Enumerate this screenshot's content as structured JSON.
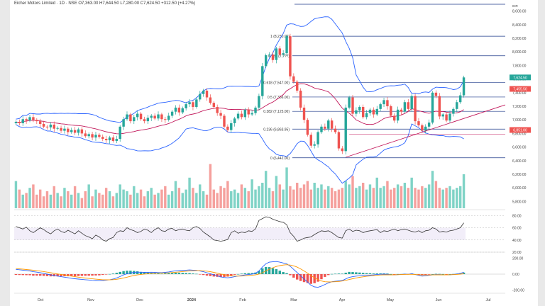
{
  "header": {
    "ticker": "Eicher Motors Limited · 1D · NSE   O7,363.00  H7,644.50  L7,280.00  C7,624.50  +312.50 (+4.27%)",
    "corner": "INR"
  },
  "colors": {
    "up": "#26a69a",
    "down": "#ef5350",
    "bb": "#2962ff",
    "basis": "#c2185b",
    "fib": "#1e3a8a",
    "rsi": "#333333",
    "macd": "#2962ff",
    "signal": "#ff9800",
    "trend": "#c2185b"
  },
  "chart_data": {
    "type": "candlestick",
    "months": [
      "Oct",
      "Nov",
      "Dec",
      "2024",
      "Feb",
      "Mar",
      "Apr",
      "May",
      "Jun",
      "Jul"
    ],
    "price_axis": [
      "8,600.00",
      "8,400.00",
      "8,200.00",
      "8,000.00",
      "7,800.00",
      "7,600.00",
      "7,400.00",
      "7,200.00",
      "7,000.00",
      "6,800.00",
      "6,600.00",
      "6,400.00",
      "6,200.00",
      "6,000.00",
      "5,800.00"
    ],
    "price_range": [
      5700,
      8700
    ],
    "fib_levels": [
      {
        "label": "1 (8,230.00)",
        "value": 8230
      },
      {
        "label": "0.786 (7,???)",
        "value": 7942
      },
      {
        "label": "0.618 (7,547.00)",
        "value": 7547
      },
      {
        "label": "0.5 (7,336.00)",
        "value": 7336
      },
      {
        "label": "0.382 (7,125.00)",
        "value": 7125
      },
      {
        "label": "0.236 (6,863.95)",
        "value": 6864
      },
      {
        "label": "0 (6,442.00)",
        "value": 6442
      }
    ],
    "price_badges": [
      {
        "label": "7,624.50",
        "value": 7624,
        "color": "#26a69a"
      },
      {
        "label": "7,455.50",
        "value": 7455,
        "color": "#ef5350"
      },
      {
        "label": "6,851.00",
        "value": 6851,
        "color": "#ef5350"
      }
    ],
    "candles_close": [
      6970,
      6950,
      7010,
      6990,
      7040,
      7000,
      6980,
      6940,
      6900,
      6890,
      6930,
      6870,
      6880,
      6840,
      6870,
      6820,
      6850,
      6810,
      6860,
      6800,
      6760,
      6790,
      6740,
      6780,
      6750,
      6720,
      6700,
      6740,
      6690,
      6720,
      6900,
      7010,
      7080,
      6980,
      7040,
      7090,
      7010,
      6980,
      7030,
      7060,
      7020,
      7080,
      7010,
      7000,
      7060,
      7120,
      7180,
      7110,
      7170,
      7230,
      7260,
      7190,
      7300,
      7380,
      7430,
      7330,
      7250,
      7190,
      7100,
      7060,
      6900,
      6850,
      6950,
      7020,
      7090,
      7040,
      7150,
      7080,
      7100,
      7180,
      7350,
      7790,
      7950,
      7960,
      7880,
      8050,
      7960,
      7980,
      8230,
      7640,
      7560,
      7430,
      7180,
      7000,
      6780,
      6620,
      6640,
      6820,
      6900,
      6870,
      6990,
      6870,
      6820,
      6580,
      6540,
      7180,
      7330,
      7090,
      7140,
      7190,
      7040,
      7100,
      7150,
      7080,
      7160,
      7230,
      7290,
      7200,
      7060,
      6990,
      7150,
      7120,
      7260,
      7160,
      7350,
      6980,
      6920,
      6840,
      6900,
      6960,
      7400,
      7350,
      7050,
      7080,
      6990,
      7090,
      7160,
      7260,
      7360,
      7624
    ],
    "volume": [
      16,
      11,
      8,
      9,
      12,
      14,
      8,
      11,
      7,
      10,
      8,
      13,
      9,
      7,
      12,
      10,
      8,
      13,
      9,
      6,
      10,
      14,
      7,
      11,
      9,
      8,
      12,
      10,
      7,
      9,
      14,
      11,
      10,
      8,
      13,
      9,
      11,
      7,
      10,
      12,
      8,
      9,
      11,
      13,
      8,
      10,
      16,
      12,
      9,
      11,
      18,
      12,
      9,
      14,
      10,
      8,
      26,
      11,
      9,
      13,
      12,
      16,
      10,
      11,
      9,
      14,
      12,
      10,
      17,
      11,
      13,
      15,
      22,
      12,
      10,
      19,
      14,
      11,
      24,
      13,
      11,
      15,
      12,
      14,
      16,
      11,
      15,
      12,
      14,
      11,
      13,
      12,
      10,
      11,
      12,
      16,
      14,
      19,
      12,
      13,
      15,
      11,
      14,
      12,
      18,
      12,
      13,
      16,
      11,
      12,
      14,
      13,
      15,
      12,
      18,
      12,
      11,
      13,
      12,
      14,
      22,
      16,
      12,
      11,
      12,
      13,
      11,
      12,
      13,
      20
    ],
    "rsi_axis": [
      "80.00",
      "60.00",
      "40.00",
      "20.00"
    ],
    "rsi_range": [
      20,
      85
    ],
    "rsi": [
      62,
      60,
      58,
      61,
      55,
      52,
      56,
      60,
      57,
      53,
      50,
      55,
      58,
      54,
      52,
      56,
      53,
      50,
      55,
      51,
      47,
      45,
      42,
      48,
      45,
      40,
      38,
      42,
      44,
      52,
      55,
      54,
      60,
      57,
      55,
      52,
      54,
      58,
      56,
      52,
      57,
      60,
      55,
      54,
      58,
      59,
      55,
      57,
      58,
      56,
      55,
      60,
      62,
      59,
      53,
      49,
      45,
      40,
      39,
      38,
      39,
      41,
      52,
      55,
      51,
      53,
      52,
      55,
      54,
      58,
      72,
      75,
      78,
      77,
      74,
      72,
      70,
      69,
      65,
      52,
      46,
      38,
      40,
      43,
      44,
      45,
      49,
      52,
      55,
      54,
      55,
      52,
      48,
      44,
      43,
      55,
      58,
      54,
      56,
      55,
      52,
      54,
      55,
      56,
      57,
      52,
      55,
      54,
      56,
      58,
      55,
      57,
      58,
      56,
      54,
      53,
      55,
      52,
      55,
      56,
      60,
      58,
      53,
      54,
      53,
      55,
      56,
      58,
      60,
      68
    ],
    "macd_axis": [
      "200.00",
      "0.00",
      "-200.00"
    ],
    "macd_range": [
      -240,
      240
    ],
    "macd": [
      60,
      55,
      50,
      45,
      40,
      30,
      25,
      18,
      10,
      0,
      -10,
      -18,
      -25,
      -32,
      -38,
      -45,
      -52,
      -58,
      -62,
      -66,
      -70,
      -74,
      -78,
      -80,
      -82,
      -80,
      -76,
      -70,
      -62,
      -48,
      -30,
      -10,
      5,
      15,
      22,
      25,
      24,
      22,
      23,
      24,
      22,
      20,
      18,
      22,
      28,
      35,
      42,
      45,
      48,
      50,
      52,
      50,
      48,
      40,
      30,
      18,
      5,
      -8,
      -22,
      -35,
      -42,
      -46,
      -40,
      -32,
      -24,
      -18,
      -10,
      -5,
      0,
      10,
      40,
      90,
      130,
      150,
      155,
      158,
      150,
      140,
      130,
      100,
      60,
      20,
      -20,
      -60,
      -100,
      -140,
      -160,
      -165,
      -150,
      -130,
      -110,
      -95,
      -90,
      -85,
      -80,
      -60,
      -40,
      -32,
      -25,
      -20,
      -18,
      -15,
      -12,
      -10,
      -5,
      -2,
      0,
      -2,
      -8,
      -10,
      -6,
      -4,
      0,
      -2,
      5,
      -5,
      -15,
      -25,
      -20,
      -15,
      -10,
      -5,
      -6,
      -8,
      -10,
      -8,
      -4,
      2,
      10,
      24
    ],
    "signal": [
      70,
      66,
      62,
      58,
      54,
      49,
      44,
      38,
      32,
      25,
      18,
      10,
      3,
      -4,
      -11,
      -18,
      -25,
      -32,
      -38,
      -44,
      -49,
      -54,
      -59,
      -63,
      -67,
      -70,
      -71,
      -71,
      -69,
      -65,
      -58,
      -48,
      -38,
      -28,
      -18,
      -10,
      -4,
      1,
      5,
      8,
      10,
      12,
      13,
      14,
      16,
      20,
      24,
      28,
      32,
      36,
      40,
      42,
      44,
      44,
      41,
      37,
      30,
      22,
      12,
      2,
      -7,
      -15,
      -21,
      -24,
      -25,
      -24,
      -21,
      -18,
      -14,
      -10,
      0,
      18,
      40,
      62,
      80,
      96,
      107,
      114,
      118,
      114,
      104,
      88,
      66,
      40,
      12,
      -18,
      -46,
      -70,
      -86,
      -95,
      -98,
      -97,
      -95,
      -92,
      -86,
      -78,
      -68,
      -58,
      -48,
      -40,
      -34,
      -28,
      -23,
      -18,
      -14,
      -11,
      -9,
      -9,
      -9,
      -8,
      -7,
      -5,
      -4,
      -2,
      -3,
      -5,
      -8,
      -10,
      -11,
      -11,
      -10,
      -9,
      -9,
      -9,
      -9,
      -8,
      -6,
      -4,
      0,
      5
    ]
  }
}
